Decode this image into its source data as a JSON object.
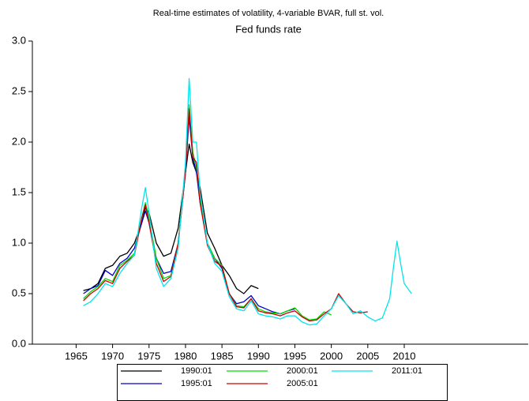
{
  "chart_data": {
    "type": "line",
    "title": "Real-time estimates of volatility, 4-variable BVAR, full st. vol.",
    "subtitle": "Fed funds rate",
    "xlim": [
      1959,
      2027
    ],
    "xticks": [
      1965,
      1970,
      1975,
      1980,
      1985,
      1990,
      1995,
      2000,
      2005,
      2010
    ],
    "ylim": [
      0,
      3
    ],
    "yticks": [
      {
        "value": 0,
        "label": "0.0"
      },
      0.5,
      {
        "value": 1,
        "label": "1.0"
      },
      1.5,
      {
        "value": 2,
        "label": "2.0"
      },
      2.5,
      {
        "value": 3,
        "label": "3.0"
      }
    ],
    "series": [
      {
        "name": "1990:01",
        "color": "#000000",
        "x": [
          1966,
          1967,
          1968,
          1969,
          1970,
          1971,
          1972,
          1973,
          1974,
          1974.5,
          1975,
          1976,
          1977,
          1978,
          1979,
          1980,
          1980.5,
          1981,
          1981.5,
          1982,
          1983,
          1984,
          1985,
          1986,
          1987,
          1988,
          1989,
          1990
        ],
        "values": [
          0.53,
          0.55,
          0.6,
          0.75,
          0.78,
          0.87,
          0.9,
          1.0,
          1.2,
          1.35,
          1.3,
          1.0,
          0.87,
          0.9,
          1.15,
          1.7,
          1.98,
          1.8,
          1.7,
          1.55,
          1.1,
          0.95,
          0.78,
          0.68,
          0.55,
          0.5,
          0.58,
          0.55
        ]
      },
      {
        "name": "1995:01",
        "color": "#0000cc",
        "x": [
          1966,
          1967,
          1968,
          1969,
          1970,
          1971,
          1972,
          1973,
          1974,
          1974.5,
          1975,
          1976,
          1977,
          1978,
          1979,
          1980,
          1980.5,
          1981,
          1981.5,
          1982,
          1983,
          1984,
          1985,
          1986,
          1987,
          1988,
          1989,
          1990,
          1991,
          1992,
          1993,
          1994,
          1995
        ],
        "values": [
          0.5,
          0.55,
          0.58,
          0.73,
          0.68,
          0.8,
          0.85,
          0.95,
          1.2,
          1.32,
          1.2,
          0.85,
          0.7,
          0.72,
          1.0,
          1.7,
          2.25,
          1.85,
          1.7,
          1.4,
          1.0,
          0.85,
          0.75,
          0.5,
          0.4,
          0.42,
          0.48,
          0.38,
          0.35,
          0.32,
          0.3,
          0.33,
          0.35
        ]
      },
      {
        "name": "2000:01",
        "color": "#00dd00",
        "x": [
          1966,
          1967,
          1968,
          1969,
          1970,
          1971,
          1972,
          1973,
          1974,
          1974.5,
          1975,
          1976,
          1977,
          1978,
          1979,
          1980,
          1980.5,
          1981,
          1981.5,
          1982,
          1983,
          1984,
          1985,
          1986,
          1987,
          1988,
          1989,
          1990,
          1991,
          1992,
          1993,
          1994,
          1995,
          1996,
          1997,
          1998,
          1999,
          2000
        ],
        "values": [
          0.45,
          0.52,
          0.57,
          0.65,
          0.62,
          0.78,
          0.83,
          0.9,
          1.25,
          1.4,
          1.25,
          0.85,
          0.65,
          0.68,
          1.0,
          1.75,
          2.37,
          1.9,
          1.75,
          1.45,
          1.0,
          0.85,
          0.78,
          0.5,
          0.38,
          0.37,
          0.45,
          0.35,
          0.32,
          0.31,
          0.3,
          0.33,
          0.36,
          0.28,
          0.24,
          0.25,
          0.32,
          0.29
        ]
      },
      {
        "name": "2005:01",
        "color": "#cc0000",
        "x": [
          1966,
          1967,
          1968,
          1969,
          1970,
          1971,
          1972,
          1973,
          1974,
          1974.5,
          1975,
          1976,
          1977,
          1978,
          1979,
          1980,
          1980.5,
          1981,
          1981.5,
          1982,
          1983,
          1984,
          1985,
          1986,
          1987,
          1988,
          1989,
          1990,
          1991,
          1992,
          1993,
          1994,
          1995,
          1996,
          1997,
          1998,
          1999,
          2000,
          2001,
          2002,
          2003,
          2004,
          2005
        ],
        "values": [
          0.43,
          0.5,
          0.55,
          0.63,
          0.6,
          0.75,
          0.82,
          0.88,
          1.25,
          1.38,
          1.2,
          0.8,
          0.62,
          0.67,
          1.0,
          1.7,
          2.33,
          1.85,
          1.8,
          1.4,
          0.98,
          0.82,
          0.77,
          0.5,
          0.37,
          0.36,
          0.45,
          0.33,
          0.31,
          0.3,
          0.28,
          0.31,
          0.33,
          0.27,
          0.23,
          0.24,
          0.3,
          0.35,
          0.5,
          0.4,
          0.32,
          0.31,
          0.32
        ]
      },
      {
        "name": "2011:01",
        "color": "#00e5ee",
        "x": [
          1966,
          1967,
          1968,
          1969,
          1970,
          1971,
          1972,
          1973,
          1974,
          1974.5,
          1975,
          1976,
          1977,
          1978,
          1979,
          1980,
          1980.5,
          1981,
          1981.5,
          1982,
          1983,
          1984,
          1985,
          1986,
          1987,
          1988,
          1989,
          1990,
          1991,
          1992,
          1993,
          1994,
          1995,
          1996,
          1997,
          1998,
          1999,
          2000,
          2001,
          2002,
          2003,
          2004,
          2005,
          2006,
          2007,
          2008,
          2008.5,
          2009,
          2009.5,
          2010,
          2011
        ],
        "values": [
          0.38,
          0.42,
          0.5,
          0.6,
          0.57,
          0.7,
          0.8,
          0.88,
          1.35,
          1.55,
          1.3,
          0.75,
          0.57,
          0.65,
          0.95,
          1.8,
          2.63,
          2.0,
          2.0,
          1.5,
          1.0,
          0.8,
          0.72,
          0.47,
          0.35,
          0.33,
          0.43,
          0.3,
          0.28,
          0.27,
          0.25,
          0.28,
          0.28,
          0.22,
          0.19,
          0.2,
          0.28,
          0.35,
          0.48,
          0.4,
          0.3,
          0.33,
          0.27,
          0.23,
          0.26,
          0.45,
          0.75,
          1.02,
          0.8,
          0.6,
          0.5
        ]
      }
    ]
  }
}
